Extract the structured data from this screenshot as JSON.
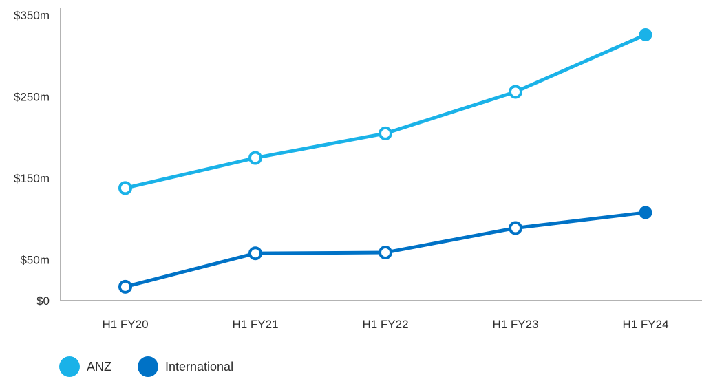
{
  "chart_data": {
    "type": "line",
    "categories": [
      "H1 FY20",
      "H1 FY21",
      "H1 FY22",
      "H1 FY23",
      "H1 FY24"
    ],
    "series": [
      {
        "name": "ANZ",
        "values": [
          138,
          175,
          205,
          256,
          326
        ],
        "color": "#1ab2e8"
      },
      {
        "name": "International",
        "values": [
          17,
          58,
          59,
          89,
          108
        ],
        "color": "#0072c6"
      }
    ],
    "yticks": [
      {
        "value": 0,
        "label": "$0"
      },
      {
        "value": 50,
        "label": "$50m"
      },
      {
        "value": 150,
        "label": "$150m"
      },
      {
        "value": 250,
        "label": "$250m"
      },
      {
        "value": 350,
        "label": "$350m"
      }
    ],
    "ylim": [
      0,
      350
    ],
    "grid": false,
    "legend_position": "bottom-left",
    "last_point_filled": true
  }
}
